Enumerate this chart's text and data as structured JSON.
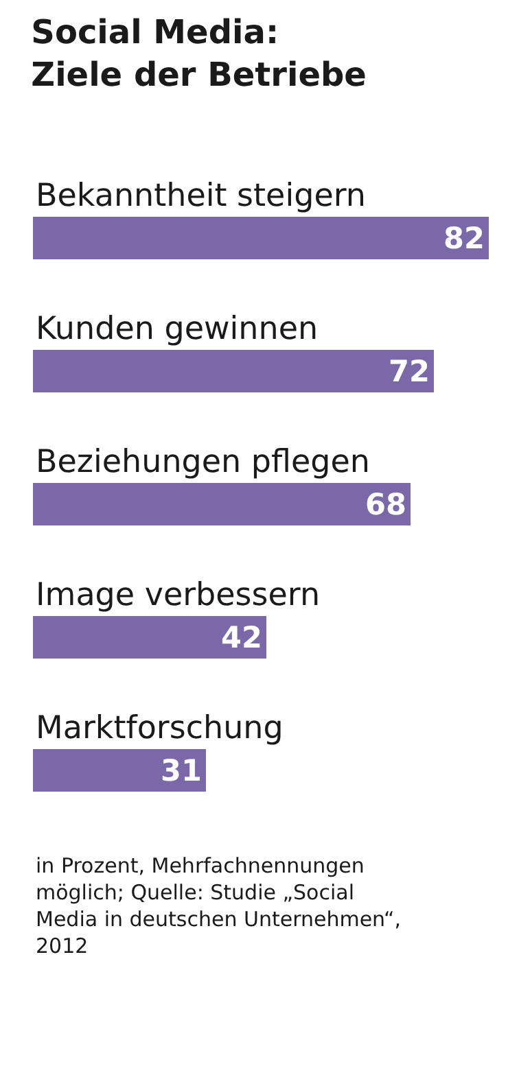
{
  "chart_data": {
    "type": "bar",
    "orientation": "horizontal",
    "title": "Social Media:\nZiele der Betriebe",
    "categories": [
      "Bekanntheit steigern",
      "Kunden gewinnen",
      "Beziehungen pflegen",
      "Image verbessern",
      "Marktforschung"
    ],
    "values": [
      82,
      72,
      68,
      42,
      31
    ],
    "color": "#7a68a8",
    "data_labels": true,
    "xlim": [
      0,
      82
    ],
    "annotations": [
      "in Prozent, Mehrfachnennungen möglich; Quelle: Studie „Social Media in deutschen Unternehmen“, 2012"
    ],
    "tick_labels": false,
    "legend": false
  }
}
